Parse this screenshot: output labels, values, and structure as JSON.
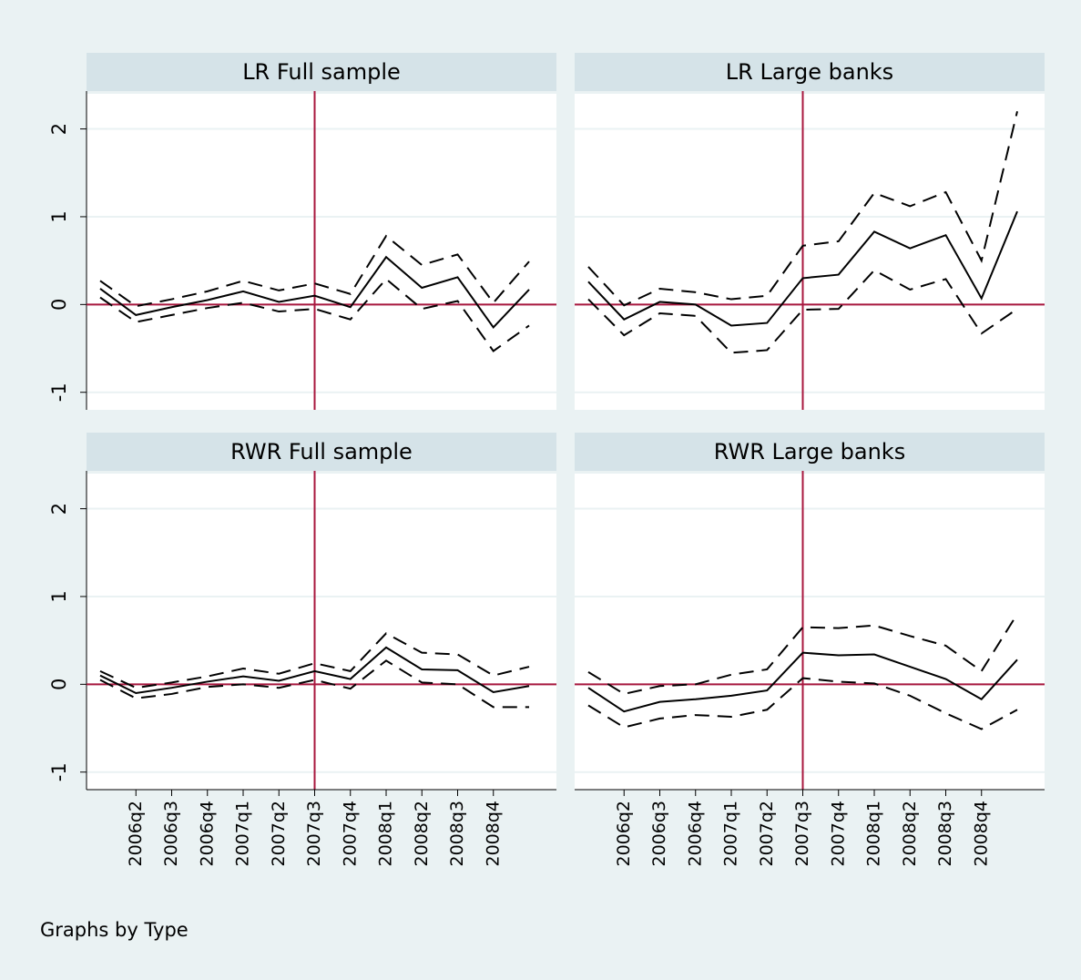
{
  "chart_data": [
    {
      "type": "line",
      "title": "LR Full sample",
      "ylim": [
        -1.2,
        2.4
      ],
      "yticks": [
        -1,
        0,
        1,
        2
      ],
      "grid": true,
      "xline": 6,
      "yline": 0,
      "series": [
        {
          "color": "#000000",
          "dash": true,
          "values": [
            0.27,
            -0.02,
            0.06,
            0.15,
            0.27,
            0.16,
            0.24,
            0.12,
            0.78,
            0.45,
            0.57,
            0.02,
            0.49
          ]
        },
        {
          "color": "#000000",
          "dash": false,
          "values": [
            0.18,
            -0.12,
            -0.03,
            0.05,
            0.15,
            0.03,
            0.1,
            -0.03,
            0.54,
            0.19,
            0.31,
            -0.26,
            0.17
          ]
        },
        {
          "color": "#000000",
          "dash": true,
          "values": [
            0.08,
            -0.2,
            -0.12,
            -0.04,
            0.02,
            -0.08,
            -0.05,
            -0.17,
            0.29,
            -0.05,
            0.04,
            -0.53,
            -0.24
          ]
        }
      ]
    },
    {
      "type": "line",
      "title": "LR Large banks",
      "ylim": [
        -1.2,
        2.4
      ],
      "yticks": [
        -1,
        0,
        1,
        2
      ],
      "grid": true,
      "xline": 6,
      "yline": 0,
      "series": [
        {
          "color": "#000000",
          "dash": true,
          "values": [
            0.43,
            -0.01,
            0.18,
            0.14,
            0.06,
            0.1,
            0.67,
            0.72,
            1.27,
            1.12,
            1.28,
            0.5,
            2.2
          ]
        },
        {
          "color": "#000000",
          "dash": false,
          "values": [
            0.26,
            -0.17,
            0.03,
            0.0,
            -0.24,
            -0.21,
            0.3,
            0.34,
            0.83,
            0.64,
            0.79,
            0.07,
            1.06
          ]
        },
        {
          "color": "#000000",
          "dash": true,
          "values": [
            0.06,
            -0.35,
            -0.1,
            -0.13,
            -0.55,
            -0.52,
            -0.06,
            -0.05,
            0.39,
            0.17,
            0.29,
            -0.33,
            -0.05
          ]
        }
      ]
    },
    {
      "type": "line",
      "title": "RWR Full sample",
      "ylim": [
        -1.2,
        2.4
      ],
      "yticks": [
        -1,
        0,
        1,
        2
      ],
      "grid": true,
      "xline": 6,
      "yline": 0,
      "categories": [
        null,
        "2006q2",
        "2006q3",
        "2006q4",
        "2007q1",
        "2007q2",
        "2007q3",
        "2007q4",
        "2008q1",
        "2008q2",
        "2008q3",
        "2008q4",
        null
      ],
      "series": [
        {
          "color": "#000000",
          "dash": true,
          "values": [
            0.15,
            -0.04,
            0.02,
            0.09,
            0.18,
            0.12,
            0.24,
            0.15,
            0.58,
            0.36,
            0.34,
            0.1,
            0.2
          ]
        },
        {
          "color": "#000000",
          "dash": false,
          "values": [
            0.1,
            -0.1,
            -0.04,
            0.03,
            0.09,
            0.04,
            0.15,
            0.06,
            0.42,
            0.17,
            0.16,
            -0.09,
            -0.02
          ]
        },
        {
          "color": "#000000",
          "dash": true,
          "values": [
            0.05,
            -0.16,
            -0.11,
            -0.03,
            0.0,
            -0.04,
            0.05,
            -0.05,
            0.27,
            0.02,
            0.0,
            -0.26,
            -0.26
          ]
        }
      ]
    },
    {
      "type": "line",
      "title": "RWR Large banks",
      "ylim": [
        -1.2,
        2.4
      ],
      "yticks": [
        -1,
        0,
        1,
        2
      ],
      "grid": true,
      "xline": 6,
      "yline": 0,
      "categories": [
        null,
        "2006q2",
        "2006q3",
        "2006q4",
        "2007q1",
        "2007q2",
        "2007q3",
        "2007q4",
        "2008q1",
        "2008q2",
        "2008q3",
        "2008q4",
        null
      ],
      "series": [
        {
          "color": "#000000",
          "dash": true,
          "values": [
            0.14,
            -0.11,
            -0.02,
            0.0,
            0.11,
            0.17,
            0.65,
            0.64,
            0.67,
            0.55,
            0.44,
            0.15,
            0.8
          ]
        },
        {
          "color": "#000000",
          "dash": false,
          "values": [
            -0.04,
            -0.31,
            -0.2,
            -0.17,
            -0.13,
            -0.07,
            0.36,
            0.33,
            0.34,
            0.2,
            0.06,
            -0.17,
            0.28
          ]
        },
        {
          "color": "#000000",
          "dash": true,
          "values": [
            -0.24,
            -0.49,
            -0.39,
            -0.35,
            -0.37,
            -0.29,
            0.07,
            0.03,
            0.01,
            -0.13,
            -0.33,
            -0.51,
            -0.29
          ]
        }
      ]
    }
  ],
  "note": "Graphs by Type"
}
